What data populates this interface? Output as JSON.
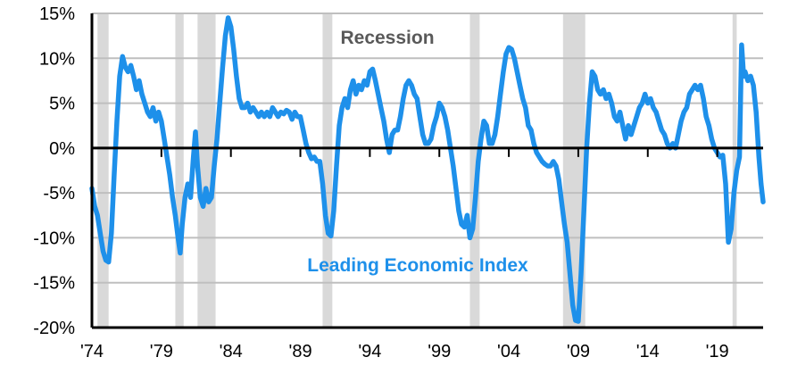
{
  "chart_data": {
    "type": "line",
    "title": "",
    "xlabel": "",
    "ylabel": "",
    "xlim": [
      1974.0,
      2022.3
    ],
    "ylim": [
      -20,
      15
    ],
    "grid": true,
    "x_ticks": [
      {
        "x": 1974,
        "label": "'74"
      },
      {
        "x": 1979,
        "label": "'79"
      },
      {
        "x": 1984,
        "label": "'84"
      },
      {
        "x": 1989,
        "label": "'89"
      },
      {
        "x": 1994,
        "label": "'94"
      },
      {
        "x": 1999,
        "label": "'99"
      },
      {
        "x": 2004,
        "label": "'04"
      },
      {
        "x": 2009,
        "label": "'09"
      },
      {
        "x": 2014,
        "label": "'14"
      },
      {
        "x": 2019,
        "label": "'19"
      }
    ],
    "y_ticks": [
      {
        "y": 15,
        "label": "15%"
      },
      {
        "y": 10,
        "label": "10%"
      },
      {
        "y": 5,
        "label": "5%"
      },
      {
        "y": 0,
        "label": "0%"
      },
      {
        "y": -5,
        "label": "-5%"
      },
      {
        "y": -10,
        "label": "-10%"
      },
      {
        "y": -15,
        "label": "-15%"
      },
      {
        "y": -20,
        "label": "-20%"
      }
    ],
    "recessions": [
      [
        1974.4,
        1975.2
      ],
      [
        1980.0,
        1980.6
      ],
      [
        1981.6,
        1982.9
      ],
      [
        1990.6,
        1991.3
      ],
      [
        2001.2,
        2001.9
      ],
      [
        2007.9,
        2009.5
      ],
      [
        2020.1,
        2020.4
      ]
    ],
    "annotations": {
      "recession_label": "Recession",
      "series_label": "Leading Economic Index"
    },
    "colors": {
      "line": "#1e90ea",
      "recession": "#d9d9d9",
      "grid": "#bfbfbf",
      "axis": "#000000",
      "recession_text": "#595959"
    },
    "series": [
      {
        "values": [
          [
            1974.0,
            -4.5
          ],
          [
            1974.2,
            -6.5
          ],
          [
            1974.4,
            -7.5
          ],
          [
            1974.6,
            -9.5
          ],
          [
            1974.8,
            -11.5
          ],
          [
            1975.0,
            -12.5
          ],
          [
            1975.2,
            -12.7
          ],
          [
            1975.4,
            -9.5
          ],
          [
            1975.6,
            -3.0
          ],
          [
            1975.8,
            3.0
          ],
          [
            1976.0,
            8.0
          ],
          [
            1976.2,
            10.2
          ],
          [
            1976.4,
            9.0
          ],
          [
            1976.6,
            8.5
          ],
          [
            1976.8,
            9.2
          ],
          [
            1977.0,
            8.0
          ],
          [
            1977.2,
            6.5
          ],
          [
            1977.4,
            7.5
          ],
          [
            1977.6,
            6.0
          ],
          [
            1977.8,
            5.0
          ],
          [
            1978.0,
            4.0
          ],
          [
            1978.2,
            3.5
          ],
          [
            1978.4,
            4.5
          ],
          [
            1978.6,
            3.0
          ],
          [
            1978.8,
            4.0
          ],
          [
            1979.0,
            3.0
          ],
          [
            1979.2,
            1.0
          ],
          [
            1979.4,
            -1.0
          ],
          [
            1979.6,
            -3.0
          ],
          [
            1979.8,
            -5.5
          ],
          [
            1980.0,
            -7.5
          ],
          [
            1980.2,
            -10.0
          ],
          [
            1980.35,
            -11.7
          ],
          [
            1980.5,
            -8.5
          ],
          [
            1980.7,
            -5.5
          ],
          [
            1980.9,
            -4.0
          ],
          [
            1981.1,
            -5.5
          ],
          [
            1981.3,
            -1.0
          ],
          [
            1981.45,
            1.8
          ],
          [
            1981.6,
            -2.0
          ],
          [
            1981.8,
            -5.5
          ],
          [
            1982.0,
            -6.5
          ],
          [
            1982.2,
            -4.5
          ],
          [
            1982.4,
            -6.0
          ],
          [
            1982.6,
            -5.5
          ],
          [
            1982.8,
            -2.0
          ],
          [
            1983.0,
            1.0
          ],
          [
            1983.2,
            5.0
          ],
          [
            1983.4,
            9.0
          ],
          [
            1983.6,
            12.5
          ],
          [
            1983.8,
            14.5
          ],
          [
            1984.0,
            13.5
          ],
          [
            1984.2,
            11.0
          ],
          [
            1984.4,
            8.0
          ],
          [
            1984.6,
            5.5
          ],
          [
            1984.8,
            4.5
          ],
          [
            1985.0,
            4.5
          ],
          [
            1985.2,
            5.0
          ],
          [
            1985.4,
            4.0
          ],
          [
            1985.6,
            4.5
          ],
          [
            1985.8,
            4.0
          ],
          [
            1986.0,
            3.5
          ],
          [
            1986.2,
            4.0
          ],
          [
            1986.4,
            3.5
          ],
          [
            1986.6,
            4.0
          ],
          [
            1986.8,
            3.5
          ],
          [
            1987.0,
            4.5
          ],
          [
            1987.2,
            4.0
          ],
          [
            1987.4,
            3.5
          ],
          [
            1987.6,
            4.0
          ],
          [
            1987.8,
            3.8
          ],
          [
            1988.0,
            4.2
          ],
          [
            1988.2,
            4.0
          ],
          [
            1988.4,
            3.2
          ],
          [
            1988.6,
            4.0
          ],
          [
            1988.8,
            3.5
          ],
          [
            1989.0,
            3.5
          ],
          [
            1989.2,
            2.0
          ],
          [
            1989.4,
            0.5
          ],
          [
            1989.6,
            -0.5
          ],
          [
            1989.8,
            -1.2
          ],
          [
            1990.0,
            -1.0
          ],
          [
            1990.2,
            -1.5
          ],
          [
            1990.4,
            -1.5
          ],
          [
            1990.6,
            -4.0
          ],
          [
            1990.8,
            -7.5
          ],
          [
            1991.0,
            -9.5
          ],
          [
            1991.2,
            -9.8
          ],
          [
            1991.4,
            -7.0
          ],
          [
            1991.6,
            -2.0
          ],
          [
            1991.8,
            2.5
          ],
          [
            1992.0,
            4.5
          ],
          [
            1992.2,
            5.5
          ],
          [
            1992.4,
            4.5
          ],
          [
            1992.6,
            6.5
          ],
          [
            1992.8,
            7.5
          ],
          [
            1993.0,
            6.0
          ],
          [
            1993.2,
            7.0
          ],
          [
            1993.4,
            6.5
          ],
          [
            1993.6,
            7.5
          ],
          [
            1993.8,
            7.0
          ],
          [
            1994.0,
            8.5
          ],
          [
            1994.2,
            8.8
          ],
          [
            1994.4,
            7.5
          ],
          [
            1994.6,
            6.0
          ],
          [
            1994.8,
            4.5
          ],
          [
            1995.0,
            3.0
          ],
          [
            1995.2,
            1.0
          ],
          [
            1995.4,
            -0.5
          ],
          [
            1995.6,
            1.5
          ],
          [
            1995.8,
            2.0
          ],
          [
            1996.0,
            2.0
          ],
          [
            1996.2,
            3.5
          ],
          [
            1996.4,
            5.5
          ],
          [
            1996.6,
            7.0
          ],
          [
            1996.8,
            7.5
          ],
          [
            1997.0,
            7.0
          ],
          [
            1997.2,
            6.0
          ],
          [
            1997.4,
            5.5
          ],
          [
            1997.6,
            3.5
          ],
          [
            1997.8,
            1.5
          ],
          [
            1998.0,
            0.5
          ],
          [
            1998.2,
            0.5
          ],
          [
            1998.4,
            1.0
          ],
          [
            1998.6,
            2.5
          ],
          [
            1998.8,
            3.5
          ],
          [
            1999.0,
            5.0
          ],
          [
            1999.2,
            4.5
          ],
          [
            1999.4,
            3.5
          ],
          [
            1999.6,
            2.0
          ],
          [
            1999.8,
            0.0
          ],
          [
            2000.0,
            -2.0
          ],
          [
            2000.2,
            -4.5
          ],
          [
            2000.4,
            -7.0
          ],
          [
            2000.6,
            -8.5
          ],
          [
            2000.8,
            -8.8
          ],
          [
            2001.0,
            -7.5
          ],
          [
            2001.2,
            -10.0
          ],
          [
            2001.4,
            -9.0
          ],
          [
            2001.6,
            -5.5
          ],
          [
            2001.8,
            -1.5
          ],
          [
            2002.0,
            1.0
          ],
          [
            2002.2,
            3.0
          ],
          [
            2002.4,
            2.5
          ],
          [
            2002.6,
            0.5
          ],
          [
            2002.8,
            0.5
          ],
          [
            2003.0,
            1.5
          ],
          [
            2003.2,
            3.5
          ],
          [
            2003.4,
            6.0
          ],
          [
            2003.6,
            8.5
          ],
          [
            2003.8,
            10.5
          ],
          [
            2004.0,
            11.2
          ],
          [
            2004.2,
            11.0
          ],
          [
            2004.4,
            10.0
          ],
          [
            2004.6,
            8.5
          ],
          [
            2004.8,
            7.0
          ],
          [
            2005.0,
            5.5
          ],
          [
            2005.2,
            4.5
          ],
          [
            2005.4,
            2.5
          ],
          [
            2005.6,
            2.0
          ],
          [
            2005.8,
            0.5
          ],
          [
            2006.0,
            -0.5
          ],
          [
            2006.2,
            -1.0
          ],
          [
            2006.4,
            -1.5
          ],
          [
            2006.6,
            -1.8
          ],
          [
            2006.8,
            -2.0
          ],
          [
            2007.0,
            -2.0
          ],
          [
            2007.2,
            -1.5
          ],
          [
            2007.4,
            -2.0
          ],
          [
            2007.6,
            -3.5
          ],
          [
            2007.8,
            -6.0
          ],
          [
            2008.0,
            -8.5
          ],
          [
            2008.2,
            -10.5
          ],
          [
            2008.4,
            -14.0
          ],
          [
            2008.6,
            -17.5
          ],
          [
            2008.8,
            -19.2
          ],
          [
            2009.0,
            -19.3
          ],
          [
            2009.2,
            -14.0
          ],
          [
            2009.4,
            -7.0
          ],
          [
            2009.6,
            0.0
          ],
          [
            2009.8,
            5.0
          ],
          [
            2010.0,
            8.5
          ],
          [
            2010.2,
            8.0
          ],
          [
            2010.4,
            6.5
          ],
          [
            2010.6,
            6.0
          ],
          [
            2010.8,
            6.5
          ],
          [
            2011.0,
            5.5
          ],
          [
            2011.2,
            6.0
          ],
          [
            2011.4,
            5.0
          ],
          [
            2011.6,
            3.5
          ],
          [
            2011.8,
            3.0
          ],
          [
            2012.0,
            4.0
          ],
          [
            2012.2,
            2.5
          ],
          [
            2012.4,
            1.0
          ],
          [
            2012.6,
            2.5
          ],
          [
            2012.8,
            1.5
          ],
          [
            2013.0,
            2.5
          ],
          [
            2013.2,
            3.5
          ],
          [
            2013.4,
            4.5
          ],
          [
            2013.6,
            5.0
          ],
          [
            2013.8,
            6.0
          ],
          [
            2014.0,
            5.0
          ],
          [
            2014.2,
            5.5
          ],
          [
            2014.4,
            4.5
          ],
          [
            2014.6,
            4.0
          ],
          [
            2014.8,
            3.0
          ],
          [
            2015.0,
            2.0
          ],
          [
            2015.2,
            1.5
          ],
          [
            2015.4,
            0.5
          ],
          [
            2015.6,
            0.0
          ],
          [
            2015.8,
            0.5
          ],
          [
            2016.0,
            0.0
          ],
          [
            2016.2,
            1.5
          ],
          [
            2016.4,
            3.0
          ],
          [
            2016.6,
            4.0
          ],
          [
            2016.8,
            4.5
          ],
          [
            2017.0,
            6.0
          ],
          [
            2017.2,
            6.5
          ],
          [
            2017.4,
            7.0
          ],
          [
            2017.6,
            6.5
          ],
          [
            2017.8,
            7.0
          ],
          [
            2018.0,
            5.5
          ],
          [
            2018.2,
            3.5
          ],
          [
            2018.4,
            2.5
          ],
          [
            2018.6,
            1.0
          ],
          [
            2018.8,
            0.0
          ],
          [
            2019.0,
            -0.5
          ],
          [
            2019.2,
            -1.0
          ],
          [
            2019.4,
            -0.8
          ],
          [
            2019.6,
            -4.0
          ],
          [
            2019.8,
            -10.5
          ],
          [
            2020.0,
            -9.0
          ],
          [
            2020.2,
            -5.0
          ],
          [
            2020.4,
            -2.5
          ],
          [
            2020.6,
            -1.0
          ],
          [
            2020.75,
            11.5
          ],
          [
            2020.9,
            8.0
          ],
          [
            2021.0,
            8.5
          ],
          [
            2021.2,
            7.5
          ],
          [
            2021.4,
            8.0
          ],
          [
            2021.6,
            7.0
          ],
          [
            2021.8,
            4.0
          ],
          [
            2022.0,
            -1.0
          ],
          [
            2022.15,
            -4.0
          ],
          [
            2022.3,
            -6.0
          ]
        ]
      }
    ]
  }
}
